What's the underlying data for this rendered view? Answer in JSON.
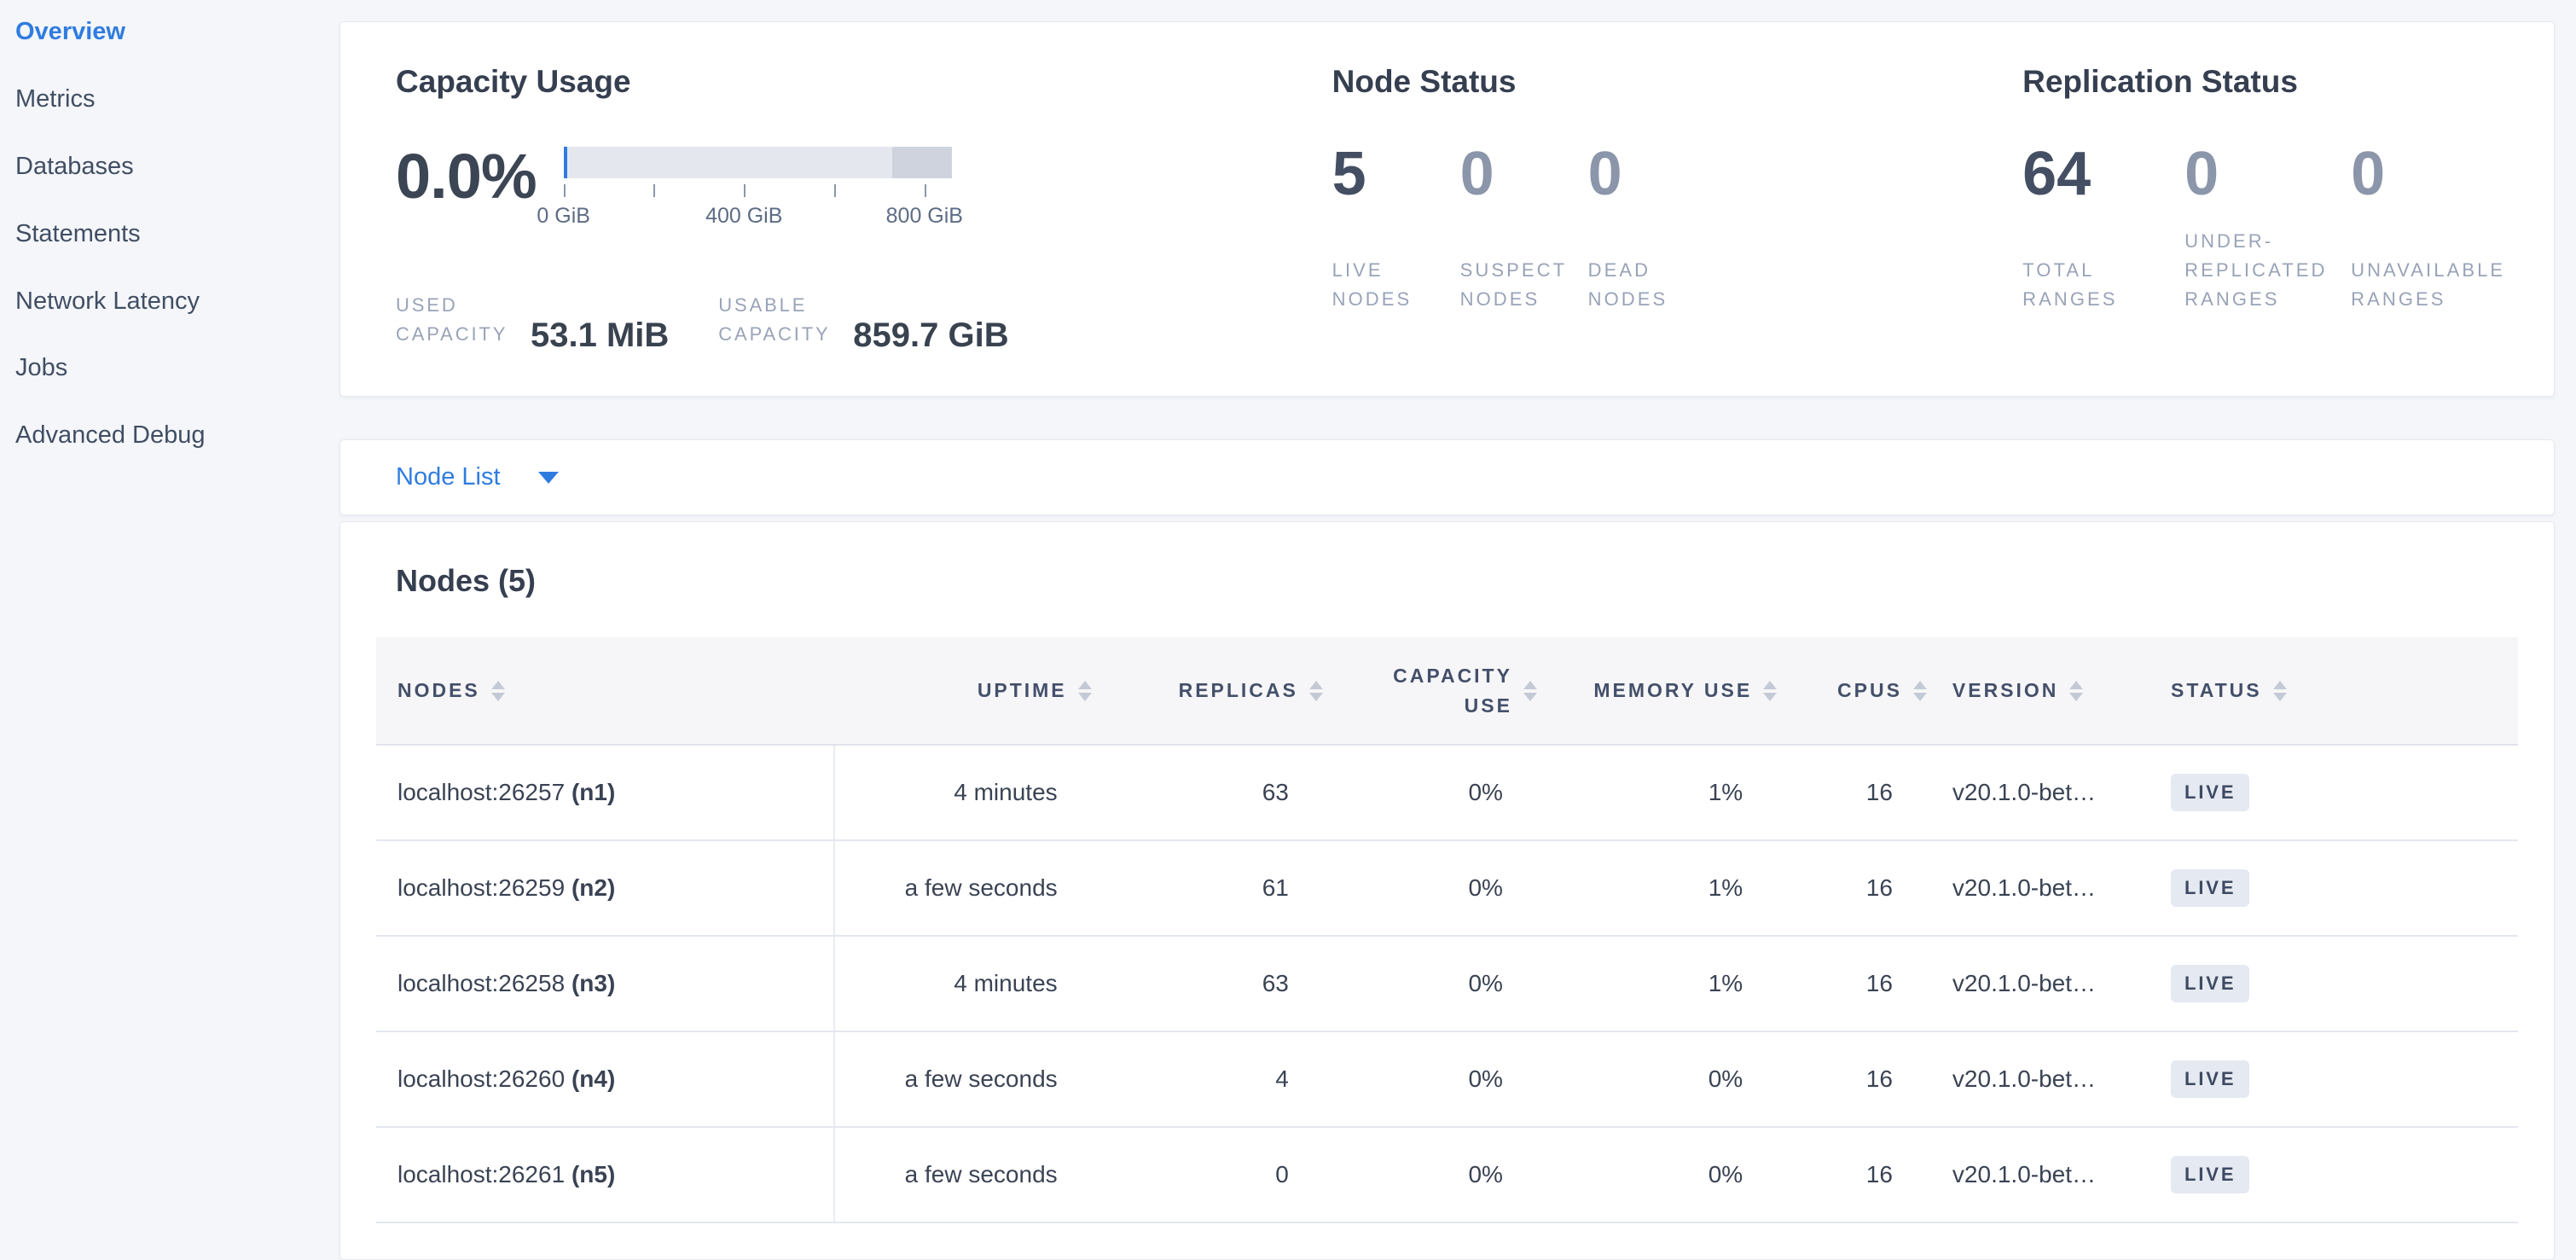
{
  "sidebar": {
    "items": [
      {
        "label": "Overview",
        "active": true
      },
      {
        "label": "Metrics",
        "active": false
      },
      {
        "label": "Databases",
        "active": false
      },
      {
        "label": "Statements",
        "active": false
      },
      {
        "label": "Network Latency",
        "active": false
      },
      {
        "label": "Jobs",
        "active": false
      },
      {
        "label": "Advanced Debug",
        "active": false
      }
    ]
  },
  "capacity": {
    "title": "Capacity Usage",
    "percent": "0.0%",
    "gauge": {
      "tick_labels": [
        "0 GiB",
        "400 GiB",
        "800 GiB"
      ],
      "used_marker_color": "#2f7ce0"
    },
    "stats": [
      {
        "label": "USED CAPACITY",
        "value": "53.1 MiB"
      },
      {
        "label": "USABLE CAPACITY",
        "value": "859.7 GiB"
      }
    ]
  },
  "node_status": {
    "title": "Node Status",
    "stats": [
      {
        "value": "5",
        "label": "LIVE NODES",
        "emphasis": true
      },
      {
        "value": "0",
        "label": "SUSPECT NODES",
        "emphasis": false
      },
      {
        "value": "0",
        "label": "DEAD NODES",
        "emphasis": false
      }
    ]
  },
  "replication": {
    "title": "Replication Status",
    "stats": [
      {
        "value": "64",
        "label": "TOTAL RANGES",
        "emphasis": true
      },
      {
        "value": "0",
        "label": "UNDER-REPLICATED RANGES",
        "emphasis": false
      },
      {
        "value": "0",
        "label": "UNAVAILABLE RANGES",
        "emphasis": false
      }
    ]
  },
  "view_selector": {
    "label": "Node List"
  },
  "nodes_table": {
    "title": "Nodes (5)",
    "columns": [
      {
        "key": "nodes",
        "label": "NODES"
      },
      {
        "key": "uptime",
        "label": "UPTIME"
      },
      {
        "key": "replicas",
        "label": "REPLICAS"
      },
      {
        "key": "capacity_use",
        "label": "CAPACITY USE"
      },
      {
        "key": "memory_use",
        "label": "MEMORY USE"
      },
      {
        "key": "cpus",
        "label": "CPUS"
      },
      {
        "key": "version",
        "label": "VERSION"
      },
      {
        "key": "status",
        "label": "STATUS"
      }
    ],
    "rows": [
      {
        "address": "localhost:26257",
        "id": "(n1)",
        "uptime": "4 minutes",
        "replicas": "63",
        "capacity_use": "0%",
        "memory_use": "1%",
        "cpus": "16",
        "version": "v20.1.0-bet…",
        "status": "LIVE"
      },
      {
        "address": "localhost:26259",
        "id": "(n2)",
        "uptime": "a few seconds",
        "replicas": "61",
        "capacity_use": "0%",
        "memory_use": "1%",
        "cpus": "16",
        "version": "v20.1.0-bet…",
        "status": "LIVE"
      },
      {
        "address": "localhost:26258",
        "id": "(n3)",
        "uptime": "4 minutes",
        "replicas": "63",
        "capacity_use": "0%",
        "memory_use": "1%",
        "cpus": "16",
        "version": "v20.1.0-bet…",
        "status": "LIVE"
      },
      {
        "address": "localhost:26260",
        "id": "(n4)",
        "uptime": "a few seconds",
        "replicas": "4",
        "capacity_use": "0%",
        "memory_use": "0%",
        "cpus": "16",
        "version": "v20.1.0-bet…",
        "status": "LIVE"
      },
      {
        "address": "localhost:26261",
        "id": "(n5)",
        "uptime": "a few seconds",
        "replicas": "0",
        "capacity_use": "0%",
        "memory_use": "0%",
        "cpus": "16",
        "version": "v20.1.0-bet…",
        "status": "LIVE"
      }
    ]
  }
}
